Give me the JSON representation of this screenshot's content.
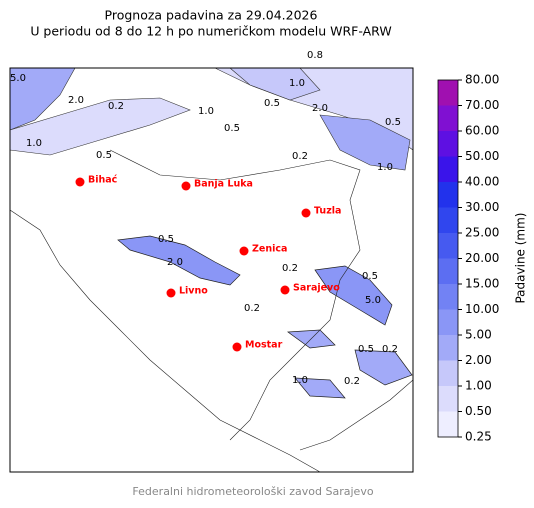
{
  "title": [
    "Prognoza padavina za 29.04.2026",
    "U periodu od 8 do 12 h po numeričkom modelu WRF-ARW"
  ],
  "cities": [
    "Bihać",
    "Banja Luka",
    "Tuzla",
    "Zenica",
    "Livno",
    "Sarajevo",
    "Mostar"
  ],
  "contour_labels": [
    "5.0",
    "2.0",
    "0.2",
    "1.0",
    "0.5",
    "0.8",
    "1.0",
    "2.0",
    "0.5",
    "1.0",
    "0.5",
    "0.2",
    "1.0",
    "0.5",
    "0.5",
    "2.0",
    "0.2",
    "0.5",
    "5.0",
    "0.2",
    "0.5",
    "0.2",
    "1.0",
    "0.2"
  ],
  "colorbar": {
    "label": "Padavine (mm)",
    "ticks": [
      {
        "value": 0.25,
        "label": "0.25"
      },
      {
        "value": 0.5,
        "label": "0.50"
      },
      {
        "value": 1,
        "label": "1.00"
      },
      {
        "value": 2,
        "label": "2.00"
      },
      {
        "value": 5,
        "label": "5.00"
      },
      {
        "value": 10,
        "label": "10.00"
      },
      {
        "value": 15,
        "label": "15.00"
      },
      {
        "value": 20,
        "label": "20.00"
      },
      {
        "value": 25,
        "label": "25.00"
      },
      {
        "value": 30,
        "label": "30.00"
      },
      {
        "value": 40,
        "label": "40.00"
      },
      {
        "value": 50,
        "label": "50.00"
      },
      {
        "value": 60,
        "label": "60.00"
      },
      {
        "value": 70,
        "label": "70.00"
      },
      {
        "value": 80,
        "label": "80.00"
      }
    ],
    "colors": [
      "#eeeeff",
      "#dcdcfc",
      "#c6c8fa",
      "#a2aaf8",
      "#8a96f6",
      "#7282f4",
      "#5c6ef2",
      "#465af0",
      "#3046ee",
      "#2232ec",
      "#3a14ea",
      "#5e10e2",
      "#8010d2",
      "#a010b0"
    ]
  },
  "footer": "Federalni hidrometeorološki zavod Sarajevo"
}
